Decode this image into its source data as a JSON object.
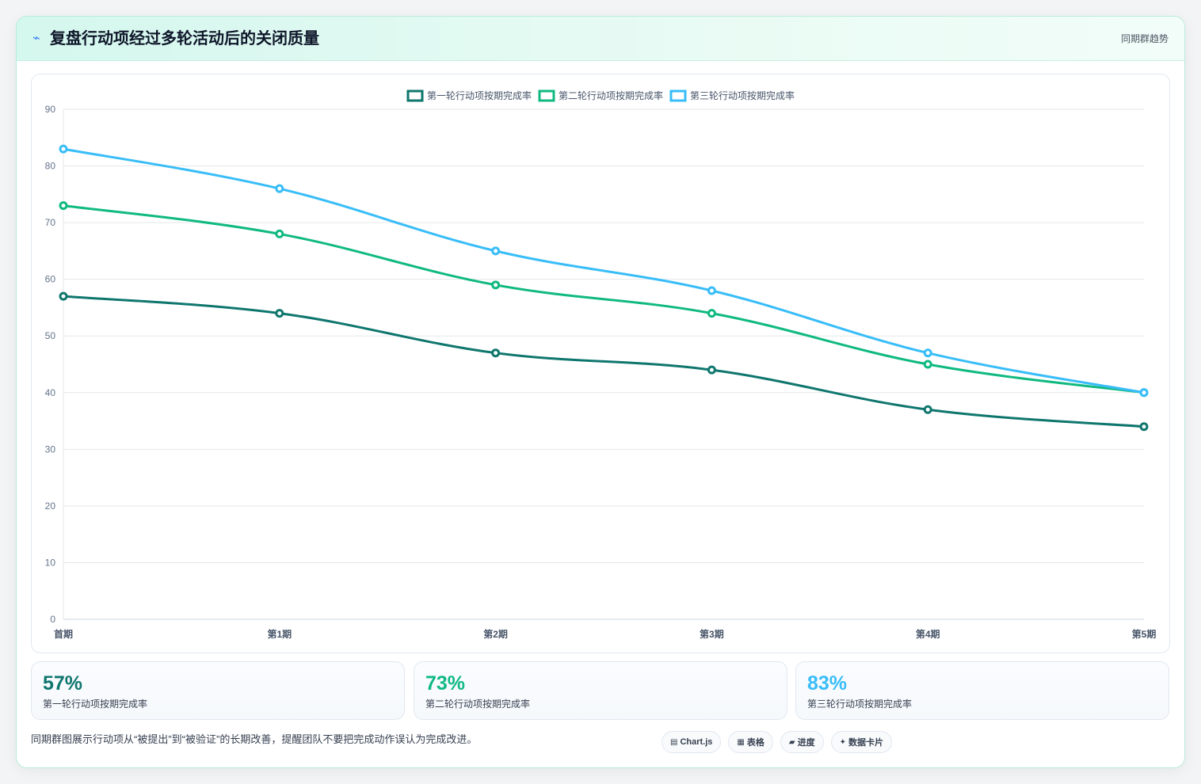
{
  "header": {
    "icon": "spark-icon",
    "title": "复盘行动项经过多轮活动后的关闭质量",
    "tag": "同期群趋势"
  },
  "chart_data": {
    "type": "line",
    "x": [
      "首期",
      "第1期",
      "第2期",
      "第3期",
      "第4期",
      "第5期"
    ],
    "series": [
      {
        "name": "第一轮行动项按期完成率",
        "values": [
          57,
          54,
          47,
          44,
          37,
          34
        ],
        "color": "#0f766e"
      },
      {
        "name": "第二轮行动项按期完成率",
        "values": [
          73,
          68,
          59,
          54,
          45,
          40
        ],
        "color": "#10b981"
      },
      {
        "name": "第三轮行动项按期完成率",
        "values": [
          83,
          76,
          65,
          58,
          47,
          40
        ],
        "color": "#38bdf8"
      }
    ],
    "ylim": [
      0,
      90
    ],
    "yticks": [
      0,
      10,
      20,
      30,
      40,
      50,
      60,
      70,
      80,
      90
    ],
    "grid": true,
    "legend": "top-center",
    "title": "",
    "xlabel": "",
    "ylabel": ""
  },
  "stats": [
    {
      "value": "57%",
      "label": "第一轮行动项按期完成率",
      "color": "#0f766e"
    },
    {
      "value": "73%",
      "label": "第二轮行动项按期完成率",
      "color": "#10b981"
    },
    {
      "value": "83%",
      "label": "第三轮行动项按期完成率",
      "color": "#38bdf8"
    }
  ],
  "footer": {
    "note": "同期群图展示行动项从“被提出”到“被验证”的长期改善，提醒团队不要把完成动作误认为完成改进。",
    "pills": [
      {
        "icon": "▤",
        "label": "Chart.js"
      },
      {
        "icon": "▦",
        "label": "表格"
      },
      {
        "icon": "▰",
        "label": "进度"
      },
      {
        "icon": "✦",
        "label": "数据卡片"
      }
    ]
  }
}
